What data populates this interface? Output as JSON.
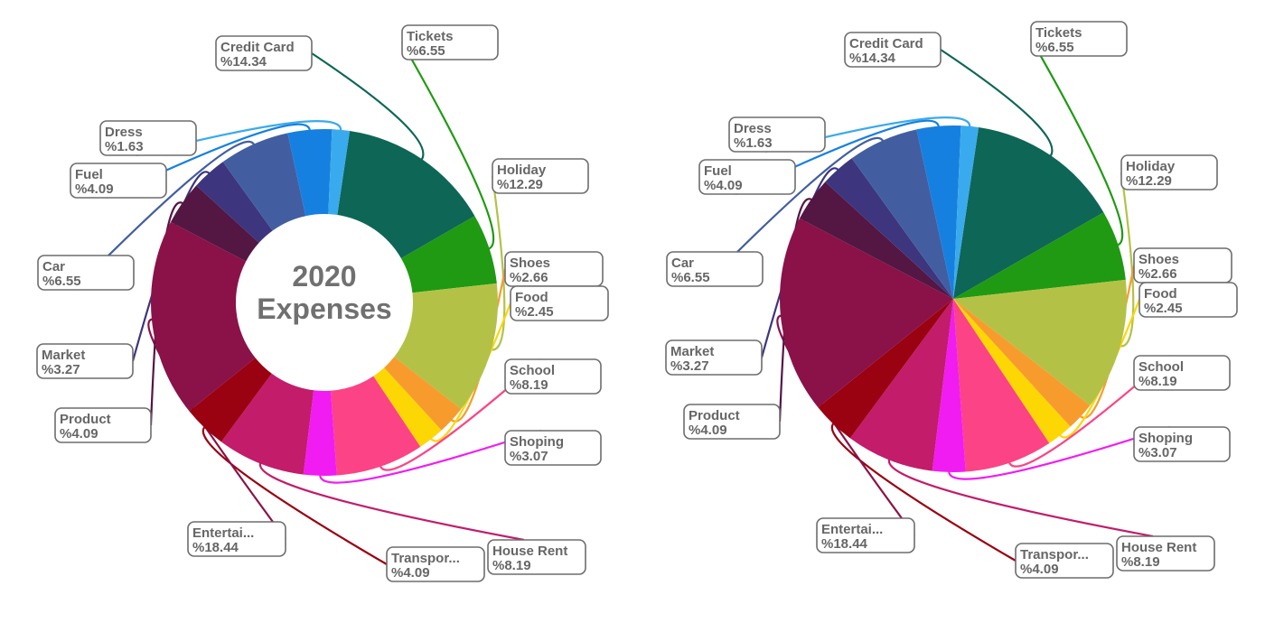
{
  "chart_data": [
    {
      "type": "donut",
      "center_title": [
        "2020",
        "Expenses"
      ],
      "slices": [
        {
          "label": "Credit Card",
          "display": "%14.34",
          "value": 14.34,
          "color": "#0e6656"
        },
        {
          "label": "Tickets",
          "display": "%6.55",
          "value": 6.55,
          "color": "#1f9a12"
        },
        {
          "label": "Holiday",
          "display": "%12.29",
          "value": 12.29,
          "color": "#b3c247"
        },
        {
          "label": "Shoes",
          "display": "%2.66",
          "value": 2.66,
          "color": "#f79c2c"
        },
        {
          "label": "Food",
          "display": "%2.45",
          "value": 2.45,
          "color": "#fcd703"
        },
        {
          "label": "School",
          "display": "%8.19",
          "value": 8.19,
          "color": "#fc4385"
        },
        {
          "label": "Shoping",
          "display": "%3.07",
          "value": 3.07,
          "color": "#f11cf1"
        },
        {
          "label": "House Rent",
          "display": "%8.19",
          "value": 8.19,
          "color": "#c21c6b"
        },
        {
          "label": "Transpor...",
          "display": "%4.09",
          "value": 4.09,
          "color": "#9a0111"
        },
        {
          "label": "Entertai...",
          "display": "%18.44",
          "value": 18.44,
          "color": "#8a1248"
        },
        {
          "label": "Product",
          "display": "%4.09",
          "value": 4.09,
          "color": "#541643"
        },
        {
          "label": "Market",
          "display": "%3.27",
          "value": 3.27,
          "color": "#3d357e"
        },
        {
          "label": "Car",
          "display": "%6.55",
          "value": 6.55,
          "color": "#425ea1"
        },
        {
          "label": "Fuel",
          "display": "%4.09",
          "value": 4.09,
          "color": "#1680e0"
        },
        {
          "label": "Dress",
          "display": "%1.63",
          "value": 1.63,
          "color": "#3aaaee"
        }
      ]
    },
    {
      "type": "pie",
      "slices": [
        {
          "label": "Credit Card",
          "display": "%14.34",
          "value": 14.34,
          "color": "#0e6656"
        },
        {
          "label": "Tickets",
          "display": "%6.55",
          "value": 6.55,
          "color": "#1f9a12"
        },
        {
          "label": "Holiday",
          "display": "%12.29",
          "value": 12.29,
          "color": "#b3c247"
        },
        {
          "label": "Shoes",
          "display": "%2.66",
          "value": 2.66,
          "color": "#f79c2c"
        },
        {
          "label": "Food",
          "display": "%2.45",
          "value": 2.45,
          "color": "#fcd703"
        },
        {
          "label": "School",
          "display": "%8.19",
          "value": 8.19,
          "color": "#fc4385"
        },
        {
          "label": "Shoping",
          "display": "%3.07",
          "value": 3.07,
          "color": "#f11cf1"
        },
        {
          "label": "House Rent",
          "display": "%8.19",
          "value": 8.19,
          "color": "#c21c6b"
        },
        {
          "label": "Transpor...",
          "display": "%4.09",
          "value": 4.09,
          "color": "#9a0111"
        },
        {
          "label": "Entertai...",
          "display": "%18.44",
          "value": 18.44,
          "color": "#8a1248"
        },
        {
          "label": "Product",
          "display": "%4.09",
          "value": 4.09,
          "color": "#541643"
        },
        {
          "label": "Market",
          "display": "%3.27",
          "value": 3.27,
          "color": "#3d357e"
        },
        {
          "label": "Car",
          "display": "%6.55",
          "value": 6.55,
          "color": "#425ea1"
        },
        {
          "label": "Fuel",
          "display": "%4.09",
          "value": 4.09,
          "color": "#1680e0"
        },
        {
          "label": "Dress",
          "display": "%1.63",
          "value": 1.63,
          "color": "#3aaaee"
        }
      ]
    }
  ]
}
